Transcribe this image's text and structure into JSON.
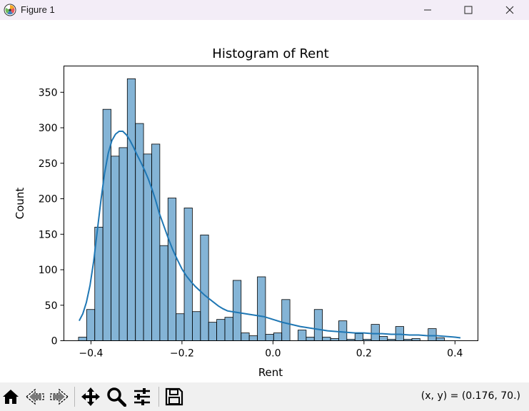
{
  "window": {
    "title": "Figure 1"
  },
  "toolbar": {
    "buttons": [
      "home-icon",
      "back-icon",
      "forward-icon",
      "pan-icon",
      "zoom-icon",
      "configure-subplots-icon",
      "save-icon"
    ],
    "coords": "(x, y) = (0.176, 70.)"
  },
  "chart_data": {
    "type": "bar",
    "title": "Histogram of Rent",
    "xlabel": "Rent",
    "ylabel": "Count",
    "xlim": [
      -0.4595,
      0.4505
    ],
    "ylim": [
      0,
      387
    ],
    "xticks": [
      -0.4,
      -0.2,
      0.0,
      0.2,
      0.4
    ],
    "xtick_labels": [
      "−0.4",
      "−0.2",
      "0.0",
      "0.2",
      "0.4"
    ],
    "yticks": [
      0,
      50,
      100,
      150,
      200,
      250,
      300,
      350
    ],
    "ytick_labels": [
      "0",
      "50",
      "100",
      "150",
      "200",
      "250",
      "300",
      "350"
    ],
    "bar_color": "#1f77b4",
    "bin_start": -0.4274,
    "bin_width": 0.01787,
    "values": [
      5,
      44,
      160,
      326,
      260,
      272,
      369,
      306,
      263,
      277,
      134,
      201,
      38,
      187,
      41,
      149,
      26,
      30,
      33,
      85,
      11,
      7,
      90,
      9,
      11,
      58,
      0,
      15,
      5,
      44,
      5,
      3,
      28,
      2,
      10,
      2,
      23,
      6,
      2,
      20,
      2,
      3,
      0,
      17,
      4
    ],
    "kde": {
      "name": "KDE",
      "color": "#1f77b4",
      "x": [
        -0.426,
        -0.418,
        -0.41,
        -0.402,
        -0.394,
        -0.386,
        -0.378,
        -0.37,
        -0.362,
        -0.354,
        -0.346,
        -0.338,
        -0.33,
        -0.322,
        -0.314,
        -0.306,
        -0.298,
        -0.29,
        -0.282,
        -0.274,
        -0.266,
        -0.258,
        -0.25,
        -0.24,
        -0.23,
        -0.22,
        -0.21,
        -0.2,
        -0.19,
        -0.18,
        -0.17,
        -0.16,
        -0.15,
        -0.14,
        -0.13,
        -0.12,
        -0.11,
        -0.1,
        -0.09,
        -0.08,
        -0.07,
        -0.06,
        -0.05,
        -0.04,
        -0.03,
        -0.02,
        -0.01,
        0.0,
        0.02,
        0.04,
        0.06,
        0.08,
        0.1,
        0.12,
        0.14,
        0.16,
        0.18,
        0.2,
        0.22,
        0.24,
        0.26,
        0.28,
        0.3,
        0.32,
        0.34,
        0.36,
        0.38,
        0.4,
        0.412
      ],
      "y": [
        28,
        38,
        54,
        78,
        112,
        155,
        198,
        236,
        264,
        282,
        291,
        295,
        295,
        290,
        282,
        272,
        261,
        251,
        240,
        228,
        214,
        198,
        180,
        162,
        144,
        128,
        114,
        101,
        91,
        83,
        76,
        70,
        64,
        59,
        54,
        49,
        45,
        42,
        41,
        40,
        39,
        38,
        37,
        36,
        35,
        34,
        32,
        30,
        26,
        23,
        20,
        18,
        16,
        14,
        13,
        12,
        11,
        11,
        10,
        10,
        9,
        9,
        8,
        8,
        7,
        7,
        6,
        5,
        4
      ]
    }
  }
}
